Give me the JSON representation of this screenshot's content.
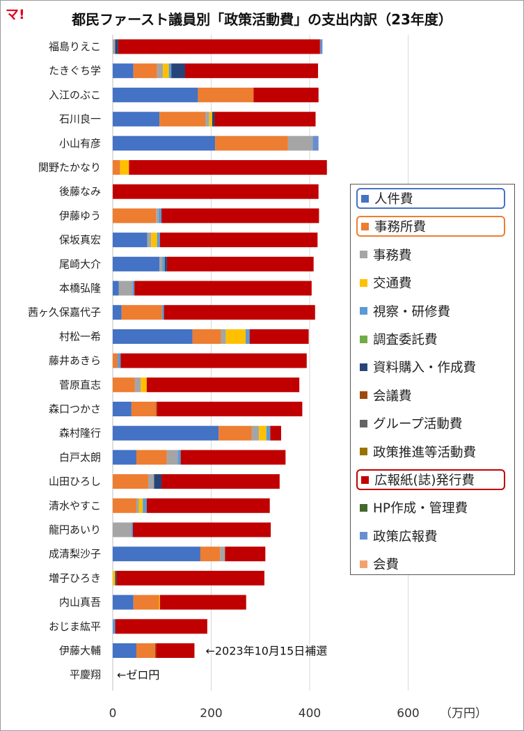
{
  "logo": "マ!",
  "title": "都民ファースト議員別「政策活動費」の支出内訳（23年度）",
  "chart_data": {
    "type": "bar",
    "orientation": "horizontal",
    "stacked": true,
    "title": "都民ファースト議員別「政策活動費」の支出内訳（23年度）",
    "xlabel": "（万円）",
    "xlim": [
      0,
      750
    ],
    "xticks": [
      0,
      200,
      400,
      600
    ],
    "grid": true,
    "legend_position": "right",
    "categories": [
      "福島りえこ",
      "たきぐち学",
      "入江のぶこ",
      "石川良一",
      "小山有彦",
      "関野たかなり",
      "後藤なみ",
      "伊藤ゆう",
      "保坂真宏",
      "尾崎大介",
      "本橋弘隆",
      "茜ヶ久保嘉代子",
      "村松一希",
      "藤井あきら",
      "菅原直志",
      "森口つかさ",
      "森村隆行",
      "白戸太朗",
      "山田ひろし",
      "清水やすこ",
      "龍円あいり",
      "成清梨沙子",
      "増子ひろき",
      "内山真吾",
      "おじま紘平",
      "伊藤大輔",
      "平慶翔"
    ],
    "series": [
      {
        "name": "人件費",
        "color": "#4472c4",
        "values": [
          0,
          42,
          173,
          95,
          208,
          0,
          0,
          0,
          70,
          95,
          12,
          18,
          162,
          0,
          0,
          38,
          215,
          48,
          0,
          0,
          0,
          178,
          0,
          42,
          0,
          48,
          0
        ]
      },
      {
        "name": "事務所費",
        "color": "#ed7d31",
        "values": [
          0,
          48,
          113,
          93,
          148,
          15,
          0,
          88,
          0,
          0,
          0,
          82,
          58,
          10,
          45,
          50,
          67,
          62,
          72,
          48,
          0,
          40,
          0,
          52,
          0,
          38,
          0
        ]
      },
      {
        "name": "事務費",
        "color": "#a5a5a5",
        "values": [
          5,
          12,
          0,
          8,
          50,
          0,
          0,
          5,
          8,
          6,
          28,
          0,
          10,
          0,
          12,
          0,
          15,
          22,
          12,
          5,
          38,
          10,
          0,
          0,
          0,
          0,
          0
        ]
      },
      {
        "name": "交通費",
        "color": "#ffc000",
        "values": [
          0,
          12,
          0,
          6,
          0,
          18,
          0,
          0,
          12,
          0,
          0,
          0,
          40,
          0,
          12,
          0,
          15,
          0,
          0,
          8,
          0,
          0,
          5,
          2,
          0,
          0,
          0
        ]
      },
      {
        "name": "視察・研修費",
        "color": "#5b9bd5",
        "values": [
          0,
          5,
          0,
          0,
          0,
          0,
          0,
          6,
          6,
          5,
          4,
          4,
          8,
          6,
          0,
          0,
          8,
          6,
          0,
          8,
          3,
          0,
          0,
          0,
          5,
          0,
          0
        ]
      },
      {
        "name": "調査委託費",
        "color": "#70ad47",
        "values": [
          0,
          0,
          0,
          0,
          0,
          0,
          0,
          0,
          0,
          0,
          0,
          0,
          0,
          0,
          0,
          0,
          0,
          0,
          0,
          0,
          0,
          0,
          0,
          0,
          0,
          0,
          0
        ]
      },
      {
        "name": "資料購入・作成費",
        "color": "#264478",
        "values": [
          6,
          28,
          0,
          5,
          0,
          0,
          0,
          0,
          0,
          4,
          0,
          0,
          0,
          0,
          0,
          0,
          0,
          0,
          15,
          0,
          0,
          0,
          3,
          0,
          0,
          0,
          0
        ]
      },
      {
        "name": "会議費",
        "color": "#9e480e",
        "values": [
          0,
          0,
          0,
          0,
          0,
          0,
          0,
          0,
          0,
          0,
          0,
          0,
          0,
          0,
          0,
          2,
          0,
          0,
          0,
          0,
          0,
          0,
          0,
          0,
          0,
          2,
          0
        ]
      },
      {
        "name": "グループ活動費",
        "color": "#636363",
        "values": [
          0,
          0,
          0,
          0,
          0,
          0,
          0,
          0,
          0,
          0,
          0,
          0,
          0,
          0,
          0,
          0,
          0,
          0,
          0,
          0,
          0,
          0,
          0,
          0,
          0,
          0,
          0
        ]
      },
      {
        "name": "政策推進等活動費",
        "color": "#997300",
        "values": [
          0,
          0,
          0,
          0,
          0,
          0,
          0,
          0,
          0,
          0,
          0,
          0,
          0,
          0,
          0,
          0,
          0,
          0,
          0,
          0,
          0,
          0,
          0,
          0,
          0,
          0,
          0
        ]
      },
      {
        "name": "広報紙(誌)発行費",
        "color": "#c00000",
        "values": [
          410,
          270,
          132,
          205,
          0,
          402,
          418,
          320,
          320,
          298,
          360,
          307,
          120,
          378,
          310,
          295,
          22,
          213,
          240,
          250,
          280,
          82,
          300,
          175,
          187,
          78,
          0
        ]
      },
      {
        "name": "HP作成・管理費",
        "color": "#43682b",
        "values": [
          0,
          0,
          0,
          0,
          0,
          0,
          0,
          0,
          0,
          0,
          0,
          0,
          0,
          0,
          0,
          0,
          0,
          0,
          0,
          0,
          0,
          0,
          0,
          0,
          0,
          0,
          0
        ]
      },
      {
        "name": "政策広報費",
        "color": "#698ed0",
        "values": [
          5,
          0,
          0,
          0,
          12,
          0,
          0,
          0,
          0,
          0,
          0,
          0,
          0,
          0,
          0,
          0,
          0,
          0,
          0,
          0,
          0,
          0,
          0,
          0,
          0,
          0,
          0
        ]
      },
      {
        "name": "会費",
        "color": "#f4a26d",
        "values": [
          0,
          0,
          0,
          0,
          0,
          0,
          0,
          0,
          0,
          0,
          0,
          0,
          0,
          0,
          0,
          0,
          0,
          0,
          0,
          0,
          0,
          0,
          0,
          0,
          0,
          0,
          0
        ]
      }
    ],
    "annotations": [
      {
        "category": "伊藤大輔",
        "text": "←2023年10月15日補選"
      },
      {
        "category": "平慶翔",
        "text": "←ゼロ円"
      }
    ],
    "legend_highlight": [
      "人件費",
      "事務所費",
      "広報紙(誌)発行費"
    ]
  }
}
